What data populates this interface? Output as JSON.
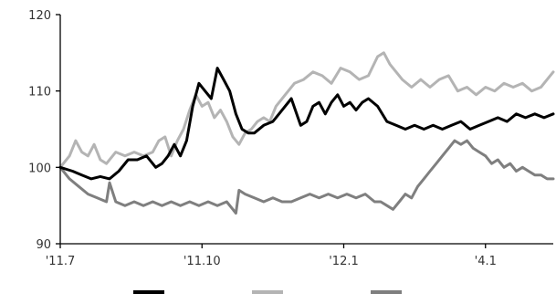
{
  "chart_data": {
    "type": "line",
    "title": "",
    "xlabel": "",
    "ylabel": "",
    "ylim": [
      90,
      120
    ],
    "yticks": [
      90,
      100,
      110,
      120
    ],
    "xtick_labels": [
      "'11.7",
      "'11.10",
      "'12.1",
      "'4.1"
    ],
    "xtick_positions": [
      0,
      92,
      184,
      276
    ],
    "x_range": [
      0,
      320
    ],
    "grid": false,
    "legend": "bottom",
    "series": [
      {
        "color": "#000000",
        "width": 3,
        "x": [
          0,
          8,
          14,
          20,
          26,
          32,
          38,
          44,
          50,
          56,
          62,
          66,
          70,
          74,
          78,
          82,
          86,
          90,
          94,
          98,
          102,
          106,
          110,
          114,
          118,
          122,
          126,
          132,
          138,
          144,
          150,
          156,
          160,
          164,
          168,
          172,
          176,
          180,
          184,
          188,
          192,
          196,
          200,
          206,
          212,
          218,
          224,
          230,
          236,
          242,
          248,
          254,
          260,
          266,
          272,
          278,
          284,
          290,
          296,
          302,
          308,
          314,
          320
        ],
        "values": [
          100,
          99.5,
          99,
          98.5,
          98.8,
          98.5,
          99.5,
          101,
          101,
          101.5,
          100,
          100.5,
          101.5,
          103,
          101.5,
          103.5,
          108,
          111,
          110,
          109,
          113,
          111.5,
          110,
          107,
          105,
          104.5,
          104.5,
          105.5,
          106,
          107.5,
          109,
          105.5,
          106,
          108,
          108.5,
          107,
          108.5,
          109.5,
          108,
          108.5,
          107.5,
          108.5,
          109,
          108,
          106,
          105.5,
          105,
          105.5,
          105,
          105.5,
          105,
          105.5,
          106,
          105,
          105.5,
          106,
          106.5,
          106,
          107,
          106.5,
          107,
          106.5,
          107
        ]
      },
      {
        "color": "#b4b4b4",
        "width": 3,
        "x": [
          0,
          6,
          10,
          14,
          18,
          22,
          26,
          30,
          36,
          42,
          48,
          54,
          60,
          64,
          68,
          72,
          76,
          80,
          84,
          88,
          92,
          96,
          100,
          104,
          108,
          112,
          116,
          120,
          124,
          128,
          132,
          136,
          140,
          146,
          152,
          158,
          164,
          170,
          176,
          182,
          188,
          194,
          200,
          206,
          210,
          214,
          218,
          222,
          228,
          234,
          240,
          246,
          252,
          258,
          264,
          270,
          276,
          282,
          288,
          294,
          300,
          306,
          312,
          316,
          320
        ],
        "values": [
          100,
          101.5,
          103.5,
          102,
          101.5,
          103,
          101,
          100.5,
          102,
          101.5,
          102,
          101.5,
          102,
          103.5,
          104,
          101.5,
          103.5,
          105,
          107.5,
          109.5,
          108,
          108.5,
          106.5,
          107.5,
          106,
          104,
          103,
          104.5,
          105,
          106,
          106.5,
          106,
          108,
          109.5,
          111,
          111.5,
          112.5,
          112,
          111,
          113,
          112.5,
          111.5,
          112,
          114.5,
          115,
          113.5,
          112.5,
          111.5,
          110.5,
          111.5,
          110.5,
          111.5,
          112,
          110,
          110.5,
          109.5,
          110.5,
          110,
          111,
          110.5,
          111,
          110,
          110.5,
          111.5,
          112.5
        ]
      },
      {
        "color": "#7f7f7f",
        "width": 3,
        "x": [
          0,
          6,
          12,
          18,
          24,
          30,
          32,
          36,
          42,
          48,
          54,
          60,
          66,
          72,
          78,
          84,
          90,
          96,
          102,
          108,
          114,
          116,
          120,
          126,
          132,
          138,
          144,
          150,
          156,
          162,
          168,
          174,
          180,
          186,
          192,
          198,
          204,
          208,
          212,
          216,
          220,
          224,
          228,
          232,
          236,
          240,
          244,
          248,
          252,
          256,
          260,
          264,
          268,
          272,
          276,
          280,
          284,
          288,
          292,
          296,
          300,
          304,
          308,
          312,
          316,
          320
        ],
        "values": [
          100,
          98.5,
          97.5,
          96.5,
          96,
          95.5,
          98,
          95.5,
          95,
          95.5,
          95,
          95.5,
          95,
          95.5,
          95,
          95.5,
          95,
          95.5,
          95,
          95.5,
          94,
          97,
          96.5,
          96,
          95.5,
          96,
          95.5,
          95.5,
          96,
          96.5,
          96,
          96.5,
          96,
          96.5,
          96,
          96.5,
          95.5,
          95.5,
          95,
          94.5,
          95.5,
          96.5,
          96,
          97.5,
          98.5,
          99.5,
          100.5,
          101.5,
          102.5,
          103.5,
          103,
          103.5,
          102.5,
          102,
          101.5,
          100.5,
          101,
          100,
          100.5,
          99.5,
          100,
          99.5,
          99,
          99,
          98.5,
          98.5
        ]
      }
    ]
  }
}
